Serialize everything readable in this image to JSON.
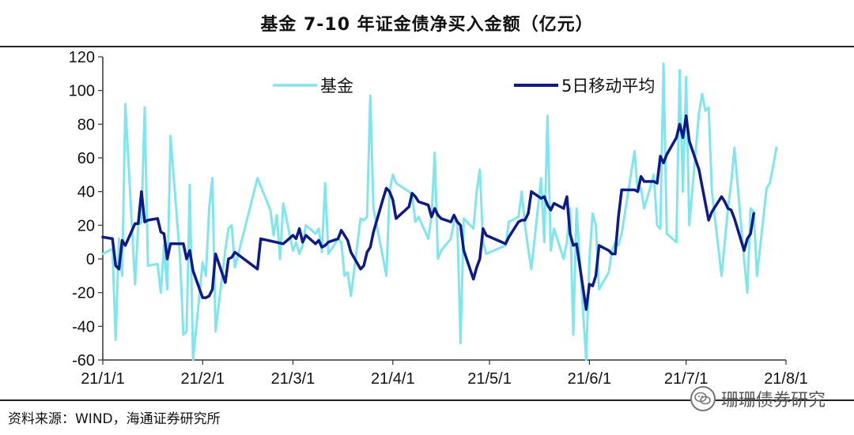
{
  "chart_data": {
    "type": "line",
    "title": "基金 7-10 年证金债净买入金额（亿元）",
    "xlabel": "",
    "ylabel": "",
    "ylim": [
      -60,
      120
    ],
    "yticks": [
      -60,
      -40,
      -20,
      0,
      20,
      40,
      60,
      80,
      100,
      120
    ],
    "xlim": [
      "2021-01-01",
      "2021-08-01"
    ],
    "xticks": [
      {
        "label": "21/1/1",
        "date": "2021-01-01"
      },
      {
        "label": "21/2/1",
        "date": "2021-02-01"
      },
      {
        "label": "21/3/1",
        "date": "2021-03-01"
      },
      {
        "label": "21/4/1",
        "date": "2021-04-01"
      },
      {
        "label": "21/5/1",
        "date": "2021-05-01"
      },
      {
        "label": "21/6/1",
        "date": "2021-06-01"
      },
      {
        "label": "21/7/1",
        "date": "2021-07-01"
      },
      {
        "label": "21/8/1",
        "date": "2021-08-01"
      }
    ],
    "grid": false,
    "legend": "top",
    "series": [
      {
        "name": "基金",
        "color": "#7fe6ee",
        "points": [
          [
            "2021-01-01",
            3
          ],
          [
            "2021-01-04",
            6
          ],
          [
            "2021-01-05",
            -48
          ],
          [
            "2021-01-06",
            12
          ],
          [
            "2021-01-07",
            -10
          ],
          [
            "2021-01-08",
            92
          ],
          [
            "2021-01-11",
            -15
          ],
          [
            "2021-01-12",
            20
          ],
          [
            "2021-01-13",
            22
          ],
          [
            "2021-01-14",
            90
          ],
          [
            "2021-01-15",
            -4
          ],
          [
            "2021-01-18",
            -3
          ],
          [
            "2021-01-19",
            -20
          ],
          [
            "2021-01-20",
            8
          ],
          [
            "2021-01-21",
            -18
          ],
          [
            "2021-01-22",
            73
          ],
          [
            "2021-01-25",
            0
          ],
          [
            "2021-01-26",
            -45
          ],
          [
            "2021-01-27",
            -43
          ],
          [
            "2021-01-28",
            44
          ],
          [
            "2021-01-29",
            -60
          ],
          [
            "2021-02-01",
            -2
          ],
          [
            "2021-02-02",
            -10
          ],
          [
            "2021-02-03",
            30
          ],
          [
            "2021-02-04",
            48
          ],
          [
            "2021-02-05",
            -43
          ],
          [
            "2021-02-08",
            5
          ],
          [
            "2021-02-09",
            18
          ],
          [
            "2021-02-10",
            20
          ],
          [
            "2021-02-11",
            -5
          ],
          [
            "2021-02-18",
            48
          ],
          [
            "2021-02-22",
            29
          ],
          [
            "2021-02-23",
            14
          ],
          [
            "2021-02-24",
            26
          ],
          [
            "2021-02-25",
            0
          ],
          [
            "2021-02-26",
            33
          ],
          [
            "2021-03-01",
            5
          ],
          [
            "2021-03-02",
            10
          ],
          [
            "2021-03-03",
            3
          ],
          [
            "2021-03-04",
            8
          ],
          [
            "2021-03-05",
            20
          ],
          [
            "2021-03-08",
            15
          ],
          [
            "2021-03-09",
            18
          ],
          [
            "2021-03-10",
            4
          ],
          [
            "2021-03-11",
            45
          ],
          [
            "2021-03-12",
            3
          ],
          [
            "2021-03-15",
            12
          ],
          [
            "2021-03-16",
            10
          ],
          [
            "2021-03-17",
            -10
          ],
          [
            "2021-03-18",
            -8
          ],
          [
            "2021-03-19",
            -22
          ],
          [
            "2021-03-22",
            24
          ],
          [
            "2021-03-23",
            23
          ],
          [
            "2021-03-24",
            25
          ],
          [
            "2021-03-25",
            97
          ],
          [
            "2021-03-26",
            30
          ],
          [
            "2021-03-29",
            0
          ],
          [
            "2021-03-30",
            -10
          ],
          [
            "2021-03-31",
            40
          ],
          [
            "2021-04-01",
            50
          ],
          [
            "2021-04-02",
            45
          ],
          [
            "2021-04-06",
            40
          ],
          [
            "2021-04-07",
            38
          ],
          [
            "2021-04-08",
            22
          ],
          [
            "2021-04-09",
            25
          ],
          [
            "2021-04-12",
            12
          ],
          [
            "2021-04-13",
            25
          ],
          [
            "2021-04-14",
            63
          ],
          [
            "2021-04-15",
            0
          ],
          [
            "2021-04-16",
            5
          ],
          [
            "2021-04-19",
            12
          ],
          [
            "2021-04-20",
            22
          ],
          [
            "2021-04-21",
            23
          ],
          [
            "2021-04-22",
            -50
          ],
          [
            "2021-04-23",
            24
          ],
          [
            "2021-04-26",
            18
          ],
          [
            "2021-04-27",
            40
          ],
          [
            "2021-04-28",
            53
          ],
          [
            "2021-04-29",
            10
          ],
          [
            "2021-04-30",
            3
          ],
          [
            "2021-05-06",
            8
          ],
          [
            "2021-05-07",
            22
          ],
          [
            "2021-05-10",
            25
          ],
          [
            "2021-05-11",
            40
          ],
          [
            "2021-05-12",
            20
          ],
          [
            "2021-05-13",
            6
          ],
          [
            "2021-05-14",
            -6
          ],
          [
            "2021-05-17",
            48
          ],
          [
            "2021-05-18",
            10
          ],
          [
            "2021-05-19",
            85
          ],
          [
            "2021-05-20",
            5
          ],
          [
            "2021-05-21",
            18
          ],
          [
            "2021-05-24",
            0
          ],
          [
            "2021-05-25",
            10
          ],
          [
            "2021-05-26",
            30
          ],
          [
            "2021-05-27",
            -45
          ],
          [
            "2021-05-28",
            30
          ],
          [
            "2021-05-31",
            -60
          ],
          [
            "2021-06-01",
            0
          ],
          [
            "2021-06-02",
            27
          ],
          [
            "2021-06-03",
            20
          ],
          [
            "2021-06-04",
            -18
          ],
          [
            "2021-06-07",
            -8
          ],
          [
            "2021-06-08",
            5
          ],
          [
            "2021-06-09",
            10
          ],
          [
            "2021-06-10",
            8
          ],
          [
            "2021-06-11",
            15
          ],
          [
            "2021-06-15",
            64
          ],
          [
            "2021-06-16",
            40
          ],
          [
            "2021-06-17",
            42
          ],
          [
            "2021-06-18",
            30
          ],
          [
            "2021-06-21",
            50
          ],
          [
            "2021-06-22",
            20
          ],
          [
            "2021-06-23",
            18
          ],
          [
            "2021-06-24",
            116
          ],
          [
            "2021-06-25",
            15
          ],
          [
            "2021-06-28",
            10
          ],
          [
            "2021-06-29",
            112
          ],
          [
            "2021-06-30",
            40
          ],
          [
            "2021-07-01",
            108
          ],
          [
            "2021-07-02",
            20
          ],
          [
            "2021-07-05",
            87
          ],
          [
            "2021-07-06",
            98
          ],
          [
            "2021-07-07",
            88
          ],
          [
            "2021-07-08",
            90
          ],
          [
            "2021-07-09",
            40
          ],
          [
            "2021-07-12",
            -10
          ],
          [
            "2021-07-13",
            10
          ],
          [
            "2021-07-14",
            30
          ],
          [
            "2021-07-15",
            45
          ],
          [
            "2021-07-16",
            66
          ],
          [
            "2021-07-19",
            0
          ],
          [
            "2021-07-20",
            -20
          ],
          [
            "2021-07-21",
            30
          ],
          [
            "2021-07-22",
            28
          ],
          [
            "2021-07-23",
            -10
          ],
          [
            "2021-07-26",
            42
          ],
          [
            "2021-07-27",
            45
          ],
          [
            "2021-07-28",
            55
          ],
          [
            "2021-07-29",
            66
          ]
        ]
      },
      {
        "name": "5日移动平均",
        "color": "#0d1a8a",
        "points": [
          [
            "2021-01-01",
            13
          ],
          [
            "2021-01-04",
            12
          ],
          [
            "2021-01-05",
            -4
          ],
          [
            "2021-01-06",
            -6
          ],
          [
            "2021-01-07",
            11
          ],
          [
            "2021-01-08",
            8
          ],
          [
            "2021-01-11",
            21
          ],
          [
            "2021-01-12",
            21
          ],
          [
            "2021-01-13",
            40
          ],
          [
            "2021-01-14",
            22
          ],
          [
            "2021-01-15",
            23
          ],
          [
            "2021-01-18",
            24
          ],
          [
            "2021-01-19",
            16
          ],
          [
            "2021-01-20",
            15
          ],
          [
            "2021-01-21",
            0
          ],
          [
            "2021-01-22",
            9
          ],
          [
            "2021-01-25",
            9
          ],
          [
            "2021-01-26",
            9
          ],
          [
            "2021-01-27",
            0
          ],
          [
            "2021-01-28",
            5
          ],
          [
            "2021-01-29",
            -7
          ],
          [
            "2021-02-01",
            -23
          ],
          [
            "2021-02-02",
            -23
          ],
          [
            "2021-02-03",
            -22
          ],
          [
            "2021-02-04",
            -18
          ],
          [
            "2021-02-05",
            3
          ],
          [
            "2021-02-08",
            -14
          ],
          [
            "2021-02-09",
            0
          ],
          [
            "2021-02-10",
            1
          ],
          [
            "2021-02-11",
            4
          ],
          [
            "2021-02-18",
            -6
          ],
          [
            "2021-02-19",
            12
          ],
          [
            "2021-02-26",
            9
          ],
          [
            "2021-03-01",
            14
          ],
          [
            "2021-03-02",
            12
          ],
          [
            "2021-03-03",
            18
          ],
          [
            "2021-03-04",
            10
          ],
          [
            "2021-03-05",
            14
          ],
          [
            "2021-03-08",
            9
          ],
          [
            "2021-03-09",
            11
          ],
          [
            "2021-03-10",
            7
          ],
          [
            "2021-03-11",
            8
          ],
          [
            "2021-03-12",
            10
          ],
          [
            "2021-03-15",
            12
          ],
          [
            "2021-03-16",
            17
          ],
          [
            "2021-03-17",
            14
          ],
          [
            "2021-03-18",
            11
          ],
          [
            "2021-03-19",
            4
          ],
          [
            "2021-03-22",
            -6
          ],
          [
            "2021-03-23",
            -4
          ],
          [
            "2021-03-24",
            4
          ],
          [
            "2021-03-25",
            7
          ],
          [
            "2021-03-26",
            16
          ],
          [
            "2021-03-29",
            36
          ],
          [
            "2021-03-30",
            42
          ],
          [
            "2021-03-31",
            40
          ],
          [
            "2021-04-01",
            35
          ],
          [
            "2021-04-02",
            24
          ],
          [
            "2021-04-06",
            31
          ],
          [
            "2021-04-07",
            39
          ],
          [
            "2021-04-08",
            37
          ],
          [
            "2021-04-09",
            34
          ],
          [
            "2021-04-12",
            32
          ],
          [
            "2021-04-13",
            25
          ],
          [
            "2021-04-14",
            30
          ],
          [
            "2021-04-15",
            26
          ],
          [
            "2021-04-16",
            24
          ],
          [
            "2021-04-19",
            22
          ],
          [
            "2021-04-20",
            26
          ],
          [
            "2021-04-21",
            22
          ],
          [
            "2021-04-22",
            20
          ],
          [
            "2021-04-23",
            5
          ],
          [
            "2021-04-26",
            -12
          ],
          [
            "2021-04-27",
            -5
          ],
          [
            "2021-04-28",
            0
          ],
          [
            "2021-04-29",
            18
          ],
          [
            "2021-04-30",
            14
          ],
          [
            "2021-05-06",
            9
          ],
          [
            "2021-05-07",
            13
          ],
          [
            "2021-05-10",
            22
          ],
          [
            "2021-05-11",
            23
          ],
          [
            "2021-05-12",
            23
          ],
          [
            "2021-05-13",
            27
          ],
          [
            "2021-05-14",
            40
          ],
          [
            "2021-05-17",
            36
          ],
          [
            "2021-05-18",
            37
          ],
          [
            "2021-05-19",
            32
          ],
          [
            "2021-05-20",
            29
          ],
          [
            "2021-05-21",
            33
          ],
          [
            "2021-05-24",
            30
          ],
          [
            "2021-05-25",
            37
          ],
          [
            "2021-05-26",
            15
          ],
          [
            "2021-05-27",
            8
          ],
          [
            "2021-05-28",
            9
          ],
          [
            "2021-05-31",
            -30
          ],
          [
            "2021-06-01",
            -15
          ],
          [
            "2021-06-02",
            -16
          ],
          [
            "2021-06-03",
            -10
          ],
          [
            "2021-06-04",
            8
          ],
          [
            "2021-06-07",
            5
          ],
          [
            "2021-06-08",
            3
          ],
          [
            "2021-06-09",
            3
          ],
          [
            "2021-06-10",
            25
          ],
          [
            "2021-06-11",
            41
          ],
          [
            "2021-06-15",
            41
          ],
          [
            "2021-06-16",
            40
          ],
          [
            "2021-06-17",
            49
          ],
          [
            "2021-06-18",
            46
          ],
          [
            "2021-06-21",
            46
          ],
          [
            "2021-06-22",
            45
          ],
          [
            "2021-06-23",
            61
          ],
          [
            "2021-06-24",
            57
          ],
          [
            "2021-06-25",
            62
          ],
          [
            "2021-06-28",
            72
          ],
          [
            "2021-06-29",
            80
          ],
          [
            "2021-06-30",
            72
          ],
          [
            "2021-07-01",
            85
          ],
          [
            "2021-07-02",
            70
          ],
          [
            "2021-07-05",
            53
          ],
          [
            "2021-07-06",
            43
          ],
          [
            "2021-07-07",
            33
          ],
          [
            "2021-07-08",
            23
          ],
          [
            "2021-07-09",
            28
          ],
          [
            "2021-07-12",
            37
          ],
          [
            "2021-07-13",
            34
          ],
          [
            "2021-07-14",
            30
          ],
          [
            "2021-07-15",
            29
          ],
          [
            "2021-07-16",
            24
          ],
          [
            "2021-07-19",
            5
          ],
          [
            "2021-07-20",
            12
          ],
          [
            "2021-07-21",
            15
          ],
          [
            "2021-07-22",
            27
          ]
        ]
      }
    ]
  },
  "footer": {
    "source": "资料来源：WIND，海通证券研究所"
  },
  "watermark": {
    "text": "珊珊债券研究",
    "icon": "wechat-icon"
  }
}
